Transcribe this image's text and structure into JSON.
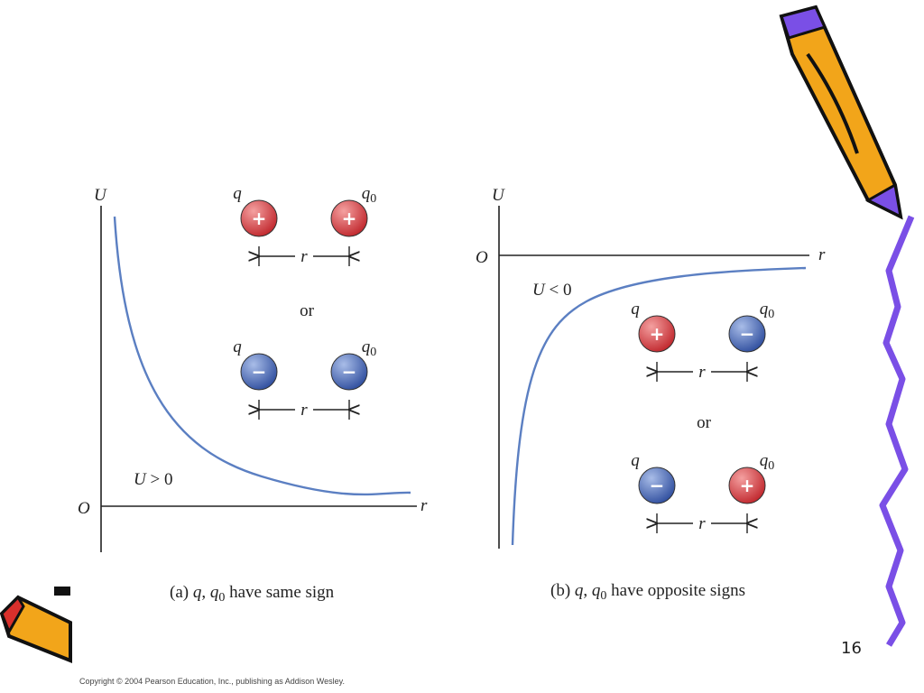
{
  "panels": [
    {
      "axis": {
        "y_label": "U",
        "origin": "O",
        "x_label": "r"
      },
      "curve_label": {
        "symbol": "U",
        "relation": " > 0"
      },
      "pairs": [
        {
          "left": {
            "label": "q",
            "sign": "+"
          },
          "right": {
            "label": "q",
            "subscript": "0",
            "sign": "+"
          },
          "distance": "r"
        },
        {
          "left": {
            "label": "q",
            "sign": "−"
          },
          "right": {
            "label": "q",
            "subscript": "0",
            "sign": "−"
          },
          "distance": "r"
        }
      ],
      "separator": "or",
      "caption": {
        "prefix": "(a) ",
        "q": "q",
        "comma": ", ",
        "q0": "q",
        "q0_subscript": "0",
        "rest": " have same sign"
      }
    },
    {
      "axis": {
        "y_label": "U",
        "origin": "O",
        "x_label": "r"
      },
      "curve_label": {
        "symbol": "U",
        "relation": " < 0"
      },
      "pairs": [
        {
          "left": {
            "label": "q",
            "sign": "+"
          },
          "right": {
            "label": "q",
            "subscript": "0",
            "sign": "−"
          },
          "distance": "r"
        },
        {
          "left": {
            "label": "q",
            "sign": "−"
          },
          "right": {
            "label": "q",
            "subscript": "0",
            "sign": "+"
          },
          "distance": "r"
        }
      ],
      "separator": "or",
      "caption": {
        "prefix": "(b) ",
        "q": "q",
        "comma": ", ",
        "q0": "q",
        "q0_subscript": "0",
        "rest": " have opposite signs"
      }
    }
  ],
  "page_number": "16",
  "copyright": "Copyright © 2004 Pearson Education, Inc., publishing as Addison Wesley."
}
